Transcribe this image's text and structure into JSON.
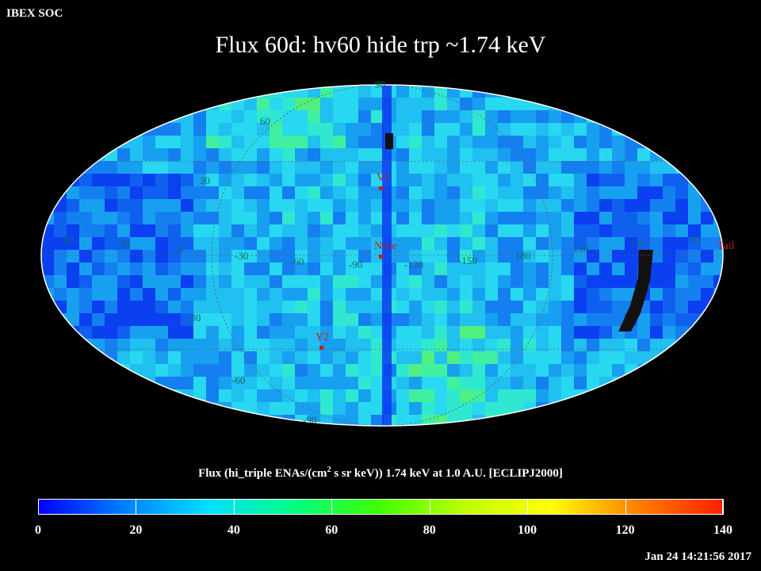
{
  "header": {
    "org": "IBEX SOC",
    "title": "Flux   60d: hv60 hide trp ~1.74 keV"
  },
  "map": {
    "projection": "mollweide",
    "grid_labels_lat": [
      "60",
      "30",
      "-30",
      "-60",
      "-90"
    ],
    "grid_labels_lat_top": "90",
    "grid_labels_lon": [
      "60",
      "30",
      "0",
      "-30",
      "-60",
      "-90",
      "-120",
      "-150",
      "180",
      "150",
      "120",
      "90"
    ],
    "markers": [
      {
        "name": "V1",
        "color": "#c81e1e"
      },
      {
        "name": "Nose",
        "color": "#c81e1e"
      },
      {
        "name": "Y2",
        "color": "#c81e1e"
      },
      {
        "name": "Tail",
        "color": "#c81e1e"
      }
    ]
  },
  "colorbar": {
    "caption_pre": "Flux (hi_triple ENAs/(cm",
    "caption_sup": "2",
    "caption_post": " s sr keV))  1.74 keV at 1.0 A.U. [ECLIPJ2000]",
    "min": 0,
    "max": 140,
    "ticks": [
      "0",
      "20",
      "40",
      "60",
      "80",
      "100",
      "120",
      "140"
    ],
    "colors": [
      "#0000ff",
      "#0080ff",
      "#00e0ff",
      "#00ff80",
      "#40ff00",
      "#c0ff00",
      "#ffff00",
      "#ff8000",
      "#ff2000"
    ]
  },
  "footer": {
    "timestamp": "Jan 24 14:21:56 2017"
  }
}
